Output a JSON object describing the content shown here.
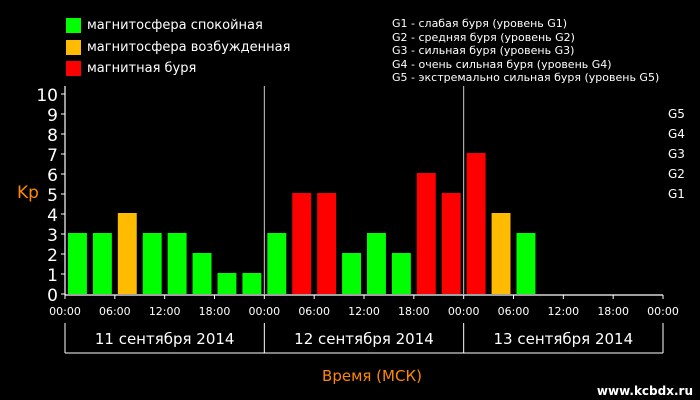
{
  "legend": {
    "items": [
      {
        "label": "магнитосфера спокойная",
        "color": "#00ff00"
      },
      {
        "label": "магнитосфера возбужденная",
        "color": "#ffbb00"
      },
      {
        "label": "магнитная буря",
        "color": "#ff0000"
      }
    ],
    "storm_levels": [
      "G1 - слабая буря (уровень G1)",
      "G2 - средняя буря (уровень G2)",
      "G3 - сильная буря (уровень G3)",
      "G4 - очень сильная буря (уровень G4)",
      "G5 - экстремально сильная буря (уровень G5)"
    ]
  },
  "watermark": "www.kcbdx.ru",
  "chart_data": {
    "type": "bar",
    "ylabel": "Kp",
    "xlabel": "Время (МСК)",
    "ylim": [
      0,
      10
    ],
    "yticks": [
      0,
      1,
      2,
      3,
      4,
      5,
      6,
      7,
      8,
      9,
      10
    ],
    "right_axis_ticks": [
      {
        "label": "G1",
        "value": 5
      },
      {
        "label": "G2",
        "value": 6
      },
      {
        "label": "G3",
        "value": 7
      },
      {
        "label": "G4",
        "value": 8
      },
      {
        "label": "G5",
        "value": 9
      }
    ],
    "xtick_labels": [
      "00:00",
      "06:00",
      "12:00",
      "18:00",
      "00:00",
      "06:00",
      "12:00",
      "18:00",
      "00:00",
      "06:00",
      "12:00",
      "18:00",
      "00:00"
    ],
    "days": [
      "11 сентября 2014",
      "12 сентября 2014",
      "13 сентября 2014"
    ],
    "interval_hours": 3,
    "values": [
      3,
      3,
      4,
      3,
      3,
      2,
      1,
      1,
      3,
      5,
      5,
      2,
      3,
      2,
      6,
      5,
      7,
      4,
      3
    ],
    "colors": {
      "quiet": "#00ff00",
      "active": "#ffbb00",
      "storm": "#ff0000"
    },
    "axis_label_color": "#ff8800"
  }
}
